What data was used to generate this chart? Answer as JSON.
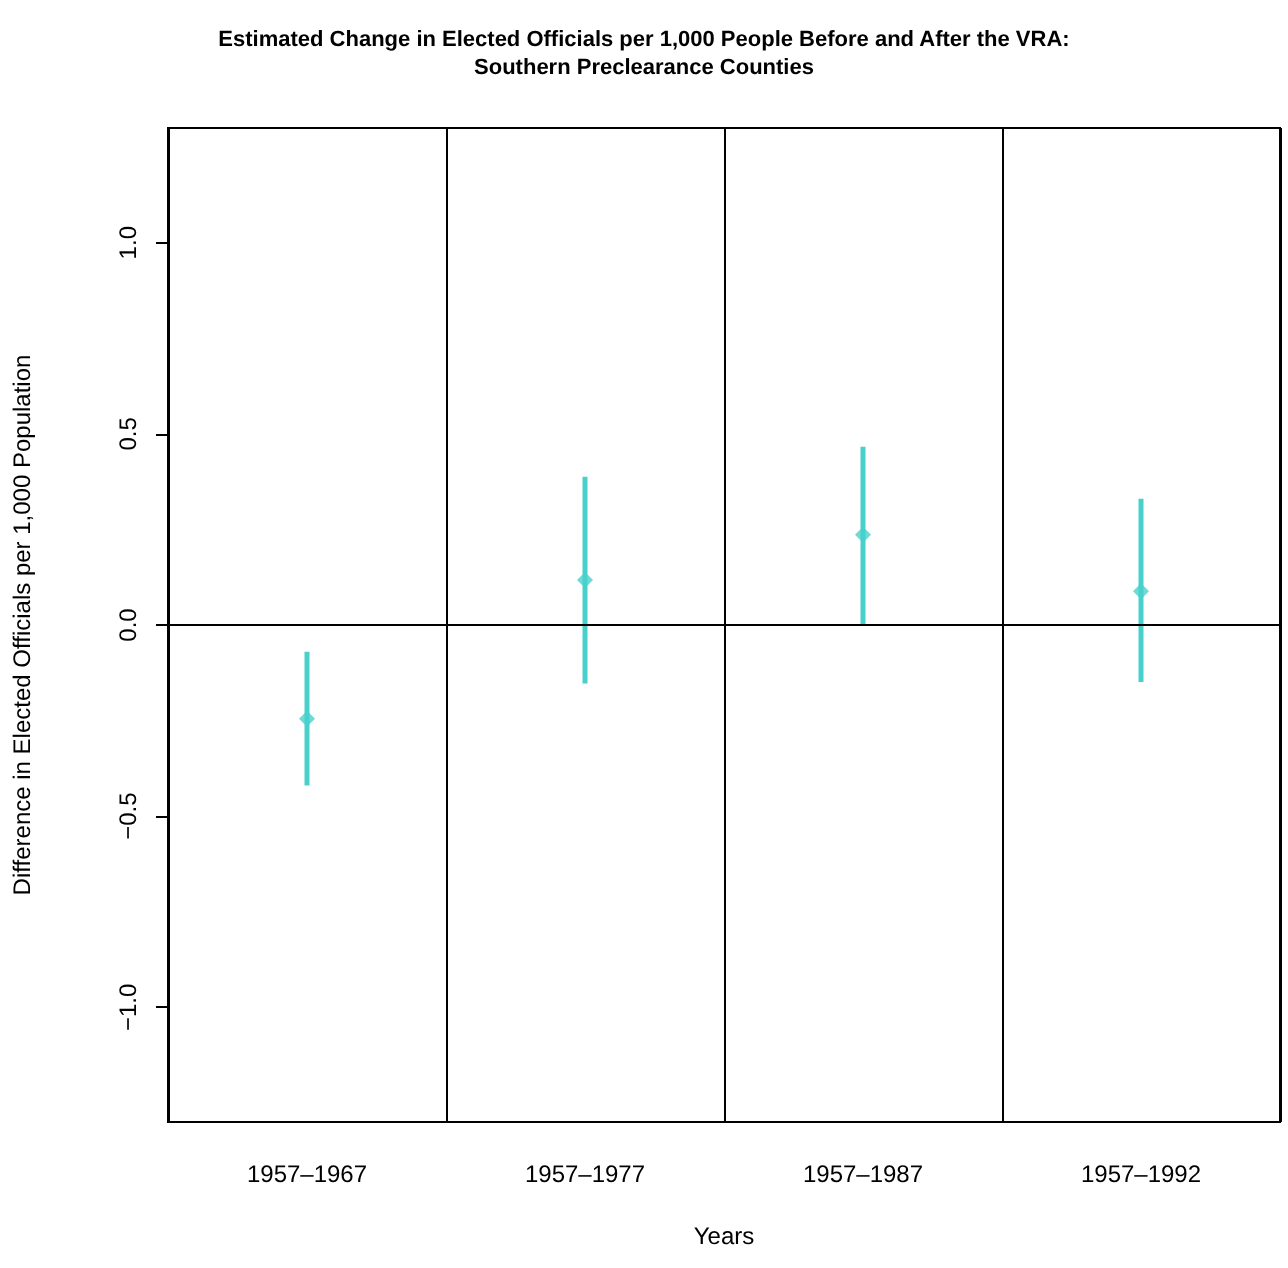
{
  "chart_data": {
    "type": "scatter",
    "title": "Estimated Change in Elected Officials per 1,000 People Before and After the VRA:\nSouthern Preclearance Counties",
    "xlabel": "Years",
    "ylabel": "Difference in Elected Officials per 1,000 Population",
    "categories": [
      "1957–1967",
      "1957–1977",
      "1957–1987",
      "1957–1992"
    ],
    "series": [
      {
        "color": "#48d1cc",
        "values": [
          -0.245,
          0.118,
          0.236,
          0.088
        ],
        "errors": [
          [
            -0.42,
            -0.07
          ],
          [
            -0.153,
            0.388
          ],
          [
            0.0,
            0.466
          ],
          [
            -0.149,
            0.33
          ]
        ]
      }
    ],
    "ylim": [
      -1.3,
      1.3
    ],
    "yticks": [
      {
        "value": -1,
        "label": "−1.0"
      },
      {
        "value": -0.5,
        "label": "−0.5"
      },
      {
        "value": 0,
        "label": "0.0"
      },
      {
        "value": 0.5,
        "label": "0.5"
      },
      {
        "value": 1,
        "label": "1.0"
      }
    ],
    "ref_lines": [
      {
        "axis": "y",
        "value": 0,
        "color": "#000000"
      }
    ],
    "grid": "x",
    "marker": "diamond"
  }
}
